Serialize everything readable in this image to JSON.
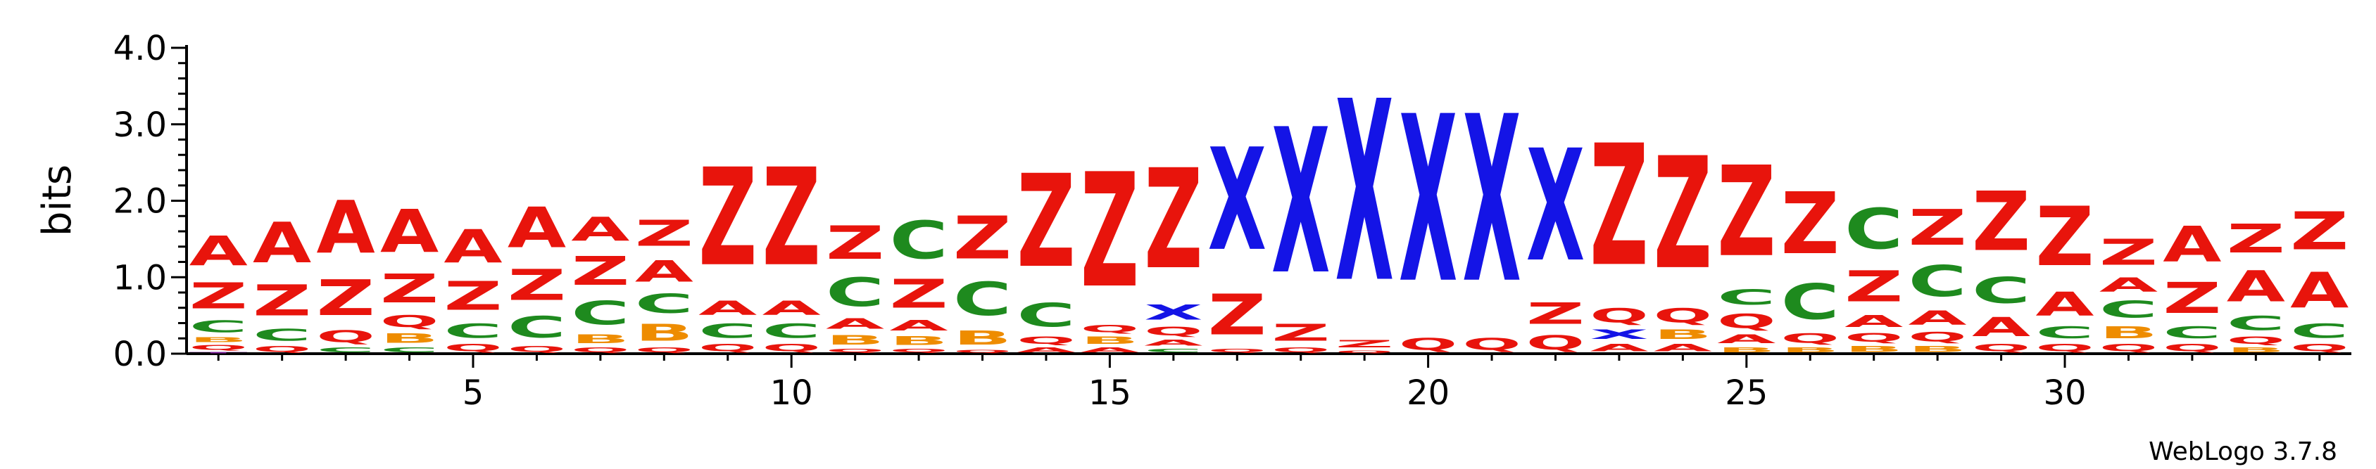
{
  "chart_data": {
    "type": "sequence-logo",
    "ylabel": "bits",
    "ylim": [
      0,
      4
    ],
    "yticks": [
      "0.0",
      "1.0",
      "2.0",
      "3.0",
      "4.0"
    ],
    "xlim": [
      0.5,
      34.5
    ],
    "xticks": [
      5,
      10,
      15,
      20,
      25,
      30
    ],
    "footer": "WebLogo 3.7.8",
    "colors": {
      "A": "#e8140c",
      "Z": "#e8140c",
      "X": "#1414e6",
      "C": "#1e8a1e",
      "B": "#ee8c00",
      "Q": "#e8140c",
      "T": "#7a1e96"
    },
    "positions": [
      {
        "pos": 1,
        "stack": [
          [
            "T",
            0.03
          ],
          [
            "Q",
            0.1
          ],
          [
            "B",
            0.1
          ],
          [
            "C",
            0.25
          ],
          [
            "Z",
            0.55
          ],
          [
            "A",
            0.62
          ]
        ]
      },
      {
        "pos": 2,
        "stack": [
          [
            "Q",
            0.12
          ],
          [
            "C",
            0.25
          ],
          [
            "Z",
            0.65
          ],
          [
            "A",
            0.85
          ]
        ]
      },
      {
        "pos": 3,
        "stack": [
          [
            "C",
            0.1
          ],
          [
            "Q",
            0.25
          ],
          [
            "Z",
            0.75
          ],
          [
            "A",
            1.1
          ]
        ]
      },
      {
        "pos": 4,
        "stack": [
          [
            "C",
            0.1
          ],
          [
            "B",
            0.2
          ],
          [
            "Q",
            0.25
          ],
          [
            "Z",
            0.6
          ],
          [
            "A",
            0.9
          ]
        ]
      },
      {
        "pos": 5,
        "stack": [
          [
            "Q",
            0.15
          ],
          [
            "C",
            0.3
          ],
          [
            "Z",
            0.6
          ],
          [
            "A",
            0.7
          ]
        ]
      },
      {
        "pos": 6,
        "stack": [
          [
            "Q",
            0.12
          ],
          [
            "C",
            0.45
          ],
          [
            "Z",
            0.65
          ],
          [
            "A",
            0.85
          ]
        ]
      },
      {
        "pos": 7,
        "stack": [
          [
            "Q",
            0.1
          ],
          [
            "B",
            0.18
          ],
          [
            "C",
            0.5
          ],
          [
            "Z",
            0.6
          ],
          [
            "A",
            0.5
          ]
        ]
      },
      {
        "pos": 8,
        "stack": [
          [
            "Q",
            0.1
          ],
          [
            "B",
            0.35
          ],
          [
            "C",
            0.4
          ],
          [
            "A",
            0.45
          ],
          [
            "Z",
            0.55
          ]
        ]
      },
      {
        "pos": 9,
        "stack": [
          [
            "Q",
            0.15
          ],
          [
            "C",
            0.3
          ],
          [
            "A",
            0.3
          ],
          [
            "Z",
            2.05
          ]
        ]
      },
      {
        "pos": 10,
        "stack": [
          [
            "Q",
            0.15
          ],
          [
            "C",
            0.3
          ],
          [
            "A",
            0.3
          ],
          [
            "Z",
            2.05
          ]
        ]
      },
      {
        "pos": 11,
        "stack": [
          [
            "Q",
            0.08
          ],
          [
            "B",
            0.2
          ],
          [
            "A",
            0.22
          ],
          [
            "C",
            0.6
          ],
          [
            "Z",
            0.7
          ]
        ]
      },
      {
        "pos": 12,
        "stack": [
          [
            "Q",
            0.08
          ],
          [
            "B",
            0.18
          ],
          [
            "A",
            0.22
          ],
          [
            "Z",
            0.6
          ],
          [
            "C",
            0.8
          ]
        ]
      },
      {
        "pos": 13,
        "stack": [
          [
            "Q",
            0.06
          ],
          [
            "B",
            0.3
          ],
          [
            "C",
            0.7
          ],
          [
            "Z",
            0.9
          ]
        ]
      },
      {
        "pos": 14,
        "stack": [
          [
            "A",
            0.1
          ],
          [
            "Q",
            0.15
          ],
          [
            "C",
            0.5
          ],
          [
            "Z",
            1.95
          ]
        ]
      },
      {
        "pos": 15,
        "stack": [
          [
            "A",
            0.1
          ],
          [
            "B",
            0.15
          ],
          [
            "Q",
            0.15
          ],
          [
            "Z",
            2.4
          ]
        ]
      },
      {
        "pos": 16,
        "stack": [
          [
            "C",
            0.08
          ],
          [
            "A",
            0.12
          ],
          [
            "Q",
            0.18
          ],
          [
            "X",
            0.32
          ],
          [
            "Z",
            2.1
          ]
        ]
      },
      {
        "pos": 17,
        "stack": [
          [
            "Q",
            0.08
          ],
          [
            "Z",
            0.85
          ],
          [
            "X",
            2.15
          ]
        ]
      },
      {
        "pos": 18,
        "stack": [
          [
            "Q",
            0.1
          ],
          [
            "Z",
            0.35
          ],
          [
            "X",
            3.05
          ]
        ]
      },
      {
        "pos": 19,
        "stack": [
          [
            "Q",
            0.05
          ],
          [
            "Z",
            0.15
          ],
          [
            "X",
            3.8
          ]
        ]
      },
      {
        "pos": 20,
        "stack": [
          [
            "Q",
            0.25
          ],
          [
            "X",
            3.5
          ]
        ]
      },
      {
        "pos": 21,
        "stack": [
          [
            "Q",
            0.25
          ],
          [
            "X",
            3.5
          ]
        ]
      },
      {
        "pos": 22,
        "stack": [
          [
            "Q",
            0.3
          ],
          [
            "Z",
            0.45
          ],
          [
            "X",
            2.35
          ]
        ]
      },
      {
        "pos": 23,
        "stack": [
          [
            "A",
            0.15
          ],
          [
            "X",
            0.2
          ],
          [
            "Q",
            0.3
          ],
          [
            "Z",
            2.55
          ]
        ]
      },
      {
        "pos": 24,
        "stack": [
          [
            "A",
            0.15
          ],
          [
            "B",
            0.2
          ],
          [
            "Q",
            0.3
          ],
          [
            "Z",
            2.35
          ]
        ]
      },
      {
        "pos": 25,
        "stack": [
          [
            "B",
            0.1
          ],
          [
            "A",
            0.18
          ],
          [
            "Q",
            0.3
          ],
          [
            "C",
            0.32
          ],
          [
            "Z",
            1.9
          ]
        ]
      },
      {
        "pos": 26,
        "stack": [
          [
            "B",
            0.1
          ],
          [
            "Q",
            0.2
          ],
          [
            "C",
            0.75
          ],
          [
            "Z",
            1.3
          ]
        ]
      },
      {
        "pos": 27,
        "stack": [
          [
            "B",
            0.12
          ],
          [
            "Q",
            0.18
          ],
          [
            "A",
            0.25
          ],
          [
            "Z",
            0.65
          ],
          [
            "C",
            0.85
          ]
        ]
      },
      {
        "pos": 28,
        "stack": [
          [
            "B",
            0.12
          ],
          [
            "Q",
            0.2
          ],
          [
            "A",
            0.3
          ],
          [
            "C",
            0.65
          ],
          [
            "Z",
            0.75
          ]
        ]
      },
      {
        "pos": 29,
        "stack": [
          [
            "Q",
            0.15
          ],
          [
            "A",
            0.4
          ],
          [
            "C",
            0.55
          ],
          [
            "Z",
            1.25
          ]
        ]
      },
      {
        "pos": 30,
        "stack": [
          [
            "Q",
            0.15
          ],
          [
            "C",
            0.25
          ],
          [
            "A",
            0.5
          ],
          [
            "Z",
            1.25
          ]
        ]
      },
      {
        "pos": 31,
        "stack": [
          [
            "Q",
            0.15
          ],
          [
            "B",
            0.25
          ],
          [
            "C",
            0.35
          ],
          [
            "A",
            0.3
          ],
          [
            "Z",
            0.55
          ]
        ]
      },
      {
        "pos": 32,
        "stack": [
          [
            "Q",
            0.15
          ],
          [
            "C",
            0.25
          ],
          [
            "Z",
            0.65
          ],
          [
            "A",
            0.75
          ]
        ]
      },
      {
        "pos": 33,
        "stack": [
          [
            "B",
            0.1
          ],
          [
            "Q",
            0.15
          ],
          [
            "C",
            0.3
          ],
          [
            "A",
            0.65
          ],
          [
            "Z",
            0.6
          ]
        ]
      },
      {
        "pos": 34,
        "stack": [
          [
            "Q",
            0.15
          ],
          [
            "C",
            0.3
          ],
          [
            "A",
            0.75
          ],
          [
            "Z",
            0.8
          ]
        ]
      }
    ]
  }
}
